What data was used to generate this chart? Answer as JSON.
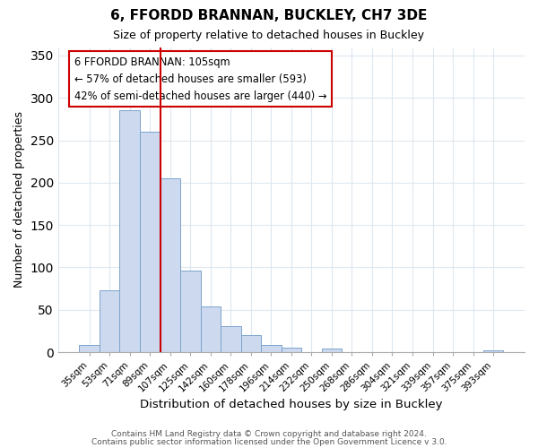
{
  "title": "6, FFORDD BRANNAN, BUCKLEY, CH7 3DE",
  "subtitle": "Size of property relative to detached houses in Buckley",
  "xlabel": "Distribution of detached houses by size in Buckley",
  "ylabel": "Number of detached properties",
  "bar_labels": [
    "35sqm",
    "53sqm",
    "71sqm",
    "89sqm",
    "107sqm",
    "125sqm",
    "142sqm",
    "160sqm",
    "178sqm",
    "196sqm",
    "214sqm",
    "232sqm",
    "250sqm",
    "268sqm",
    "286sqm",
    "304sqm",
    "321sqm",
    "339sqm",
    "357sqm",
    "375sqm",
    "393sqm"
  ],
  "bar_values": [
    9,
    73,
    285,
    260,
    205,
    96,
    54,
    31,
    20,
    8,
    5,
    0,
    4,
    0,
    0,
    0,
    0,
    0,
    0,
    0,
    2
  ],
  "bar_color": "#ccd9ee",
  "bar_edge_color": "#7da4cc",
  "vline_x_index": 3.5,
  "vline_color": "#cc0000",
  "ylim": [
    0,
    360
  ],
  "yticks": [
    0,
    50,
    100,
    150,
    200,
    250,
    300,
    350
  ],
  "annotation_box_text": "6 FFORDD BRANNAN: 105sqm\n← 57% of detached houses are smaller (593)\n42% of semi-detached houses are larger (440) →",
  "footer_line1": "Contains HM Land Registry data © Crown copyright and database right 2024.",
  "footer_line2": "Contains public sector information licensed under the Open Government Licence v 3.0.",
  "background_color": "#ffffff",
  "grid_color": "#dde8f0"
}
